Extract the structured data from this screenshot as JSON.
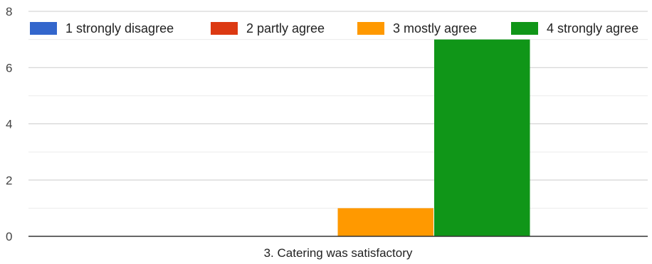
{
  "chart_data": {
    "type": "bar",
    "title": "",
    "xlabel": "",
    "ylabel": "",
    "categories": [
      "3. Catering was satisfactory"
    ],
    "series": [
      {
        "name": "1 strongly disagree",
        "values": [
          0
        ],
        "color": "#3366cc"
      },
      {
        "name": "2 partly agree",
        "values": [
          0
        ],
        "color": "#dc3912"
      },
      {
        "name": "3 mostly agree",
        "values": [
          1
        ],
        "color": "#ff9900"
      },
      {
        "name": "4 strongly agree",
        "values": [
          7
        ],
        "color": "#109618"
      }
    ],
    "ylim": [
      0,
      8
    ],
    "yticks": [
      0,
      2,
      4,
      6,
      8
    ],
    "grid": true,
    "legend": "top",
    "colors": {
      "grid_major": "#cccccc",
      "grid_minor": "#ebebeb",
      "axis": "#333333"
    }
  }
}
